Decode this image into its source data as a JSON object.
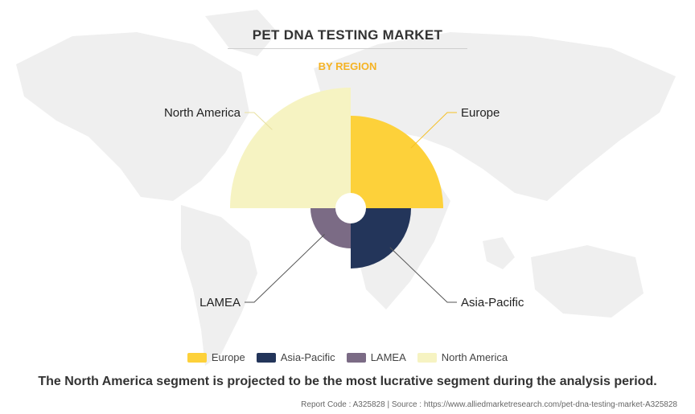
{
  "title": "PET DNA TESTING MARKET",
  "subtitle": "BY REGION",
  "chart_data": {
    "type": "pie",
    "variant": "polar-area (rose) chart, equal 90° sectors with varying radius",
    "categories": [
      "Europe",
      "Asia-Pacific",
      "LAMEA",
      "North America"
    ],
    "values": [
      115,
      75,
      50,
      150
    ],
    "colors": [
      "#fdd13a",
      "#23355a",
      "#7b6b85",
      "#f6f3c2"
    ],
    "legend_position": "bottom"
  },
  "legend": [
    {
      "label": "Europe",
      "color": "#fdd13a"
    },
    {
      "label": "Asia-Pacific",
      "color": "#23355a"
    },
    {
      "label": "LAMEA",
      "color": "#7b6b85"
    },
    {
      "label": "North America",
      "color": "#f6f3c2"
    }
  ],
  "takeaway": "The North America segment is projected to be the most lucrative segment during the analysis period.",
  "footer": "Report Code : A325828  |  Source : https://www.alliedmarketresearch.com/pet-dna-testing-market-A325828"
}
